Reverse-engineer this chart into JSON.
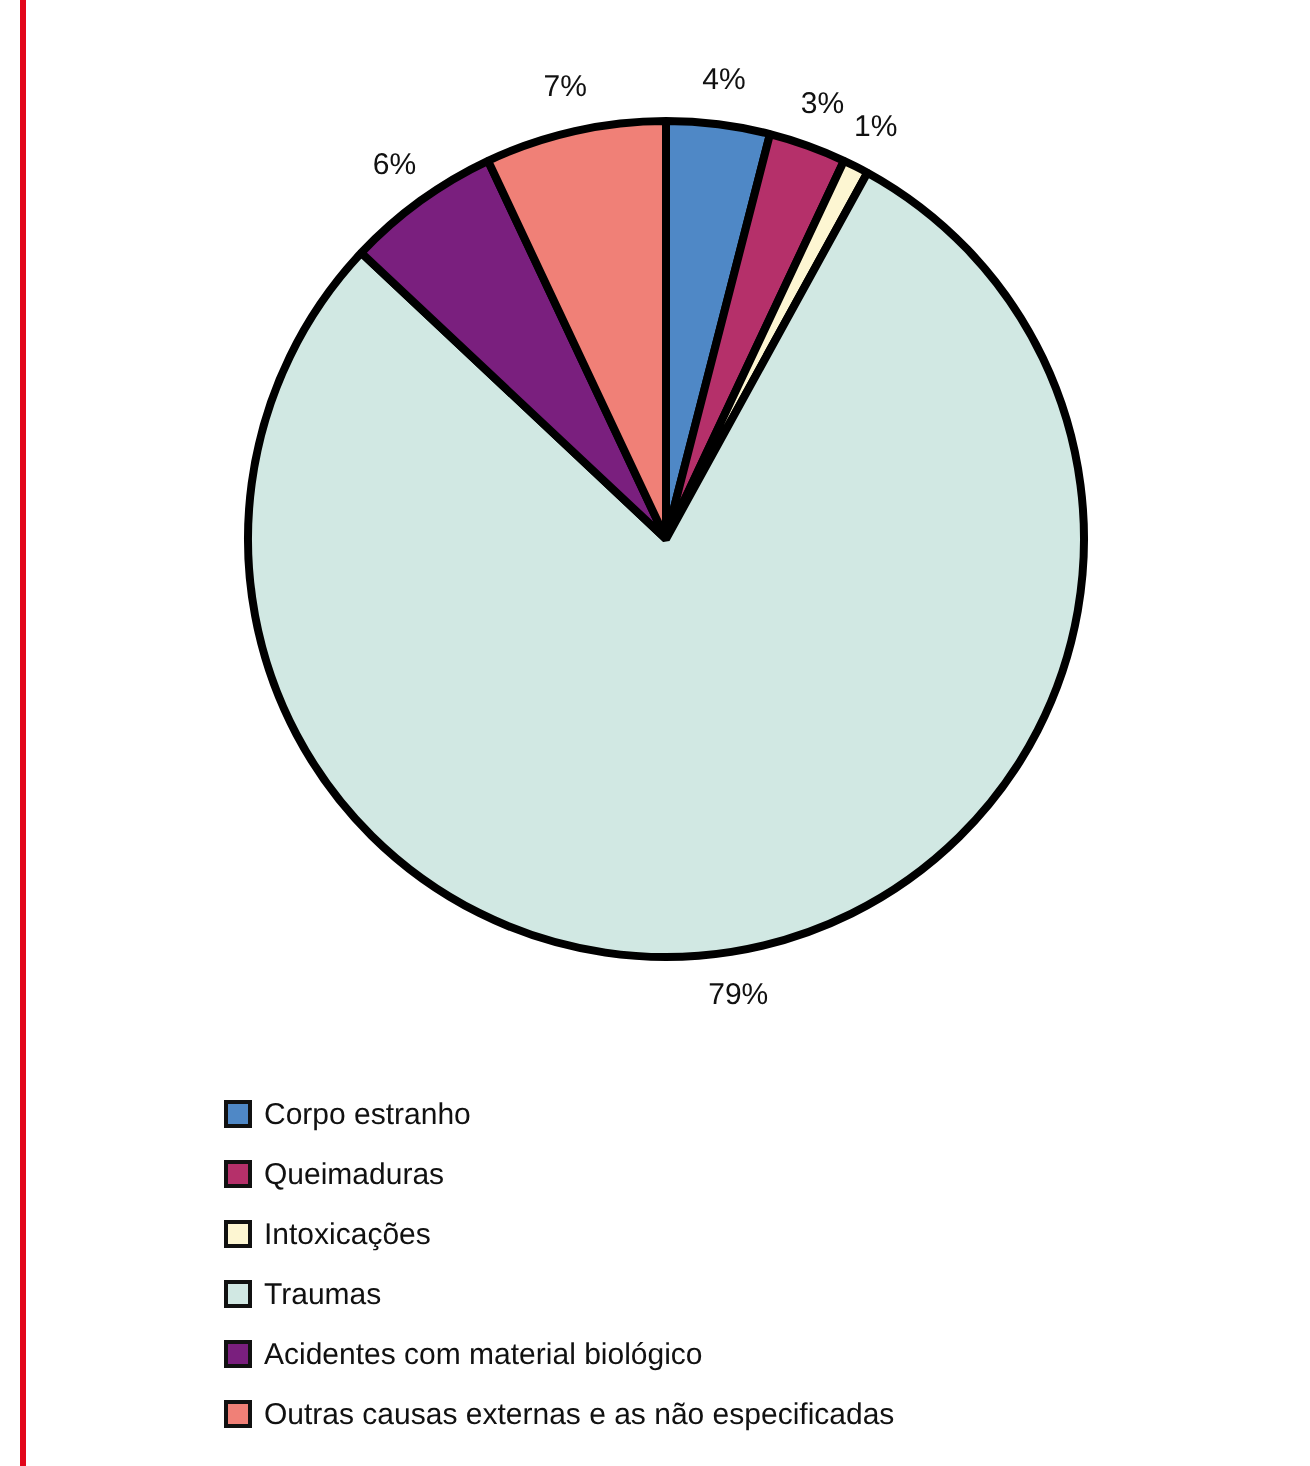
{
  "chart_data": {
    "type": "pie",
    "categories": [
      "Corpo estranho",
      "Queimaduras",
      "Intoxicações",
      "Traumas",
      "Acidentes com material biológico",
      "Outras causas externas e as não especificadas"
    ],
    "values": [
      4,
      3,
      1,
      79,
      6,
      7
    ],
    "colors": [
      "#4f88c6",
      "#b5306a",
      "#fdf6d2",
      "#d1e8e3",
      "#7a1f7e",
      "#f08077"
    ],
    "value_labels": [
      "4%",
      "3%",
      "1%",
      "79%",
      "6%",
      "7%"
    ],
    "legend": "bottom"
  }
}
